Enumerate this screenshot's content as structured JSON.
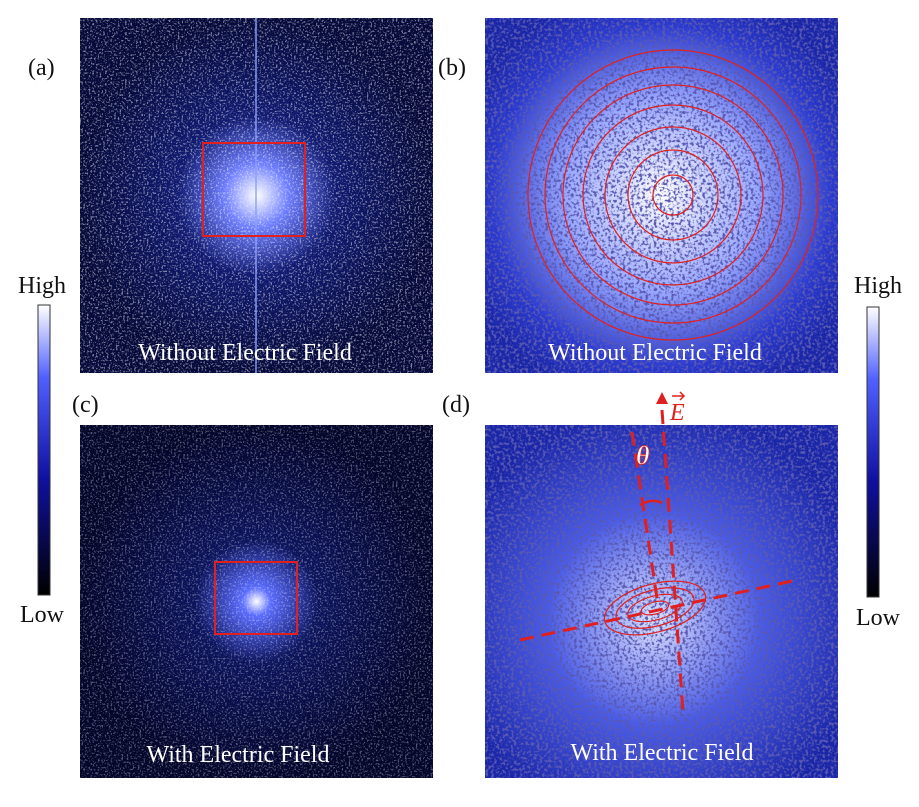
{
  "panels": [
    {
      "label": "(a)",
      "caption": "Without Electric Field"
    },
    {
      "label": "(b)",
      "caption": "Without Electric Field"
    },
    {
      "label": "(c)",
      "caption": "With Electric Field"
    },
    {
      "label": "(d)",
      "caption": "With Electric Field"
    }
  ],
  "colorbars": [
    {
      "high": "High",
      "low": "Low"
    },
    {
      "high": "High",
      "low": "Low"
    }
  ],
  "annotations": {
    "angle": "θ",
    "field": "E"
  }
}
